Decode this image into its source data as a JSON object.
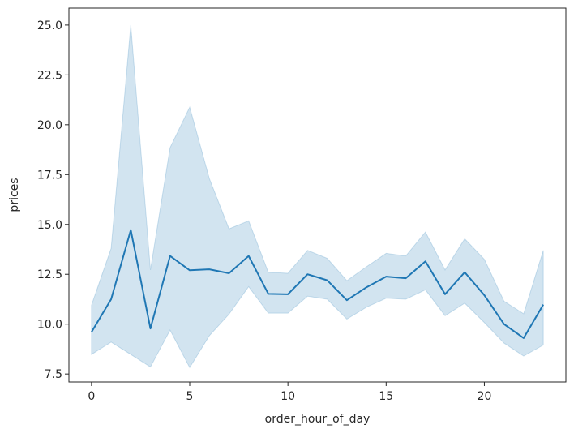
{
  "chart_data": {
    "type": "line",
    "xlabel": "order_hour_of_day",
    "ylabel": "prices",
    "xlim": [
      -1.15,
      24.15
    ],
    "ylim": [
      7.1,
      25.85
    ],
    "xticks": [
      0,
      5,
      10,
      15,
      20
    ],
    "xtick_labels": [
      "0",
      "5",
      "10",
      "15",
      "20"
    ],
    "yticks": [
      7.5,
      10.0,
      12.5,
      15.0,
      17.5,
      20.0,
      22.5,
      25.0
    ],
    "ytick_labels": [
      "7.5",
      "10.0",
      "12.5",
      "15.0",
      "17.5",
      "20.0",
      "22.5",
      "25.0"
    ],
    "grid": false,
    "legend": "none",
    "colors": {
      "line": "#1f77b4",
      "band": "#1f77b4"
    },
    "series": [
      {
        "x": [
          0,
          1,
          2,
          3,
          4,
          5,
          6,
          7,
          8,
          9,
          10,
          11,
          12,
          13,
          14,
          15,
          16,
          17,
          18,
          19,
          20,
          21,
          22,
          23
        ],
        "values": [
          9.6,
          11.25,
          14.72,
          9.78,
          13.42,
          12.7,
          12.75,
          12.55,
          13.42,
          11.52,
          11.5,
          12.5,
          12.2,
          11.2,
          11.85,
          12.38,
          12.3,
          13.15,
          11.5,
          12.6,
          11.45,
          10.0,
          9.3,
          10.98
        ],
        "ci_lower": [
          8.48,
          9.1,
          8.48,
          7.85,
          9.7,
          7.82,
          9.42,
          10.5,
          11.88,
          10.55,
          10.55,
          11.4,
          11.25,
          10.25,
          10.85,
          11.3,
          11.25,
          11.72,
          10.42,
          11.05,
          10.08,
          9.05,
          8.4,
          8.95
        ],
        "ci_upper": [
          10.95,
          13.8,
          25.0,
          12.72,
          18.85,
          20.88,
          17.3,
          14.78,
          15.18,
          12.6,
          12.55,
          13.7,
          13.3,
          12.18,
          12.88,
          13.55,
          13.42,
          14.62,
          12.72,
          14.28,
          13.25,
          11.15,
          10.52,
          13.7
        ]
      }
    ]
  }
}
